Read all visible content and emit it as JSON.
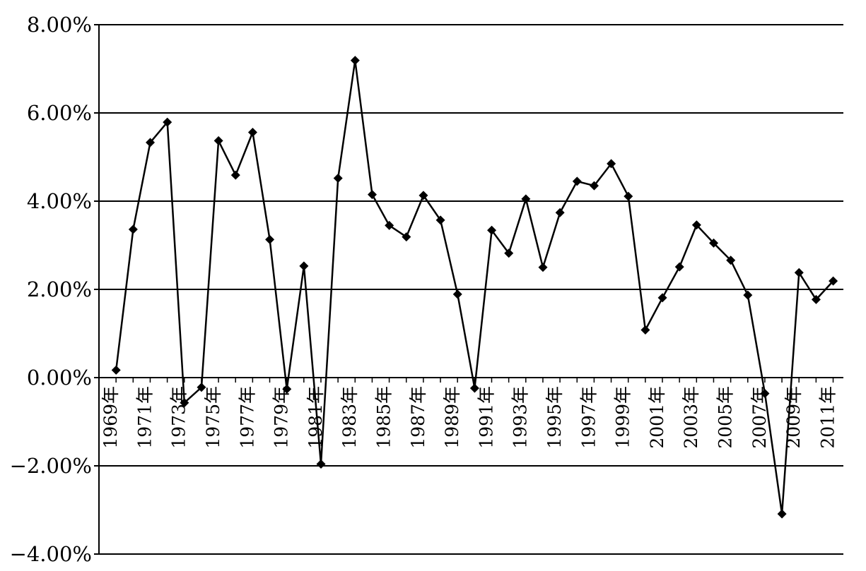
{
  "chart_data": {
    "type": "line",
    "title": "",
    "xlabel": "",
    "ylabel": "",
    "ylim": [
      -4,
      8
    ],
    "y_ticks": [
      8,
      6,
      4,
      2,
      0,
      -2,
      -4
    ],
    "y_tick_labels": [
      "8.00%",
      "6.00%",
      "4.00%",
      "2.00%",
      "0.00%",
      "−2.00%",
      "−4.00%"
    ],
    "grid": true,
    "legend": "none",
    "x_tick_labels": [
      "1969年",
      "1971年",
      "1973年",
      "1975年",
      "1977年",
      "1979年",
      "1981年",
      "1983年",
      "1985年",
      "1987年",
      "1989年",
      "1991年",
      "1993年",
      "1995年",
      "1997年",
      "1999年",
      "2001年",
      "2003年",
      "2005年",
      "2007年",
      "2009年",
      "2011年"
    ],
    "x": [
      1970,
      1971,
      1972,
      1973,
      1974,
      1975,
      1976,
      1977,
      1978,
      1979,
      1980,
      1981,
      1982,
      1983,
      1984,
      1985,
      1986,
      1987,
      1988,
      1989,
      1990,
      1991,
      1992,
      1993,
      1994,
      1995,
      1996,
      1997,
      1998,
      1999,
      2000,
      2001,
      2002,
      2003,
      2004,
      2005,
      2006,
      2007,
      2008,
      2009,
      2010,
      2011,
      2012
    ],
    "series": [
      {
        "color": "#000000",
        "marker": "diamond",
        "values": [
          0.17,
          3.36,
          5.33,
          5.79,
          -0.57,
          -0.22,
          5.37,
          4.59,
          5.56,
          3.13,
          -0.26,
          2.53,
          -1.96,
          4.52,
          7.19,
          4.15,
          3.45,
          3.19,
          4.13,
          3.57,
          1.89,
          -0.24,
          3.34,
          2.82,
          4.05,
          2.5,
          3.74,
          4.45,
          4.35,
          4.85,
          4.11,
          1.08,
          1.81,
          2.51,
          3.46,
          3.05,
          2.66,
          1.87,
          -0.36,
          -3.09,
          2.38,
          1.77,
          2.19
        ]
      }
    ]
  }
}
